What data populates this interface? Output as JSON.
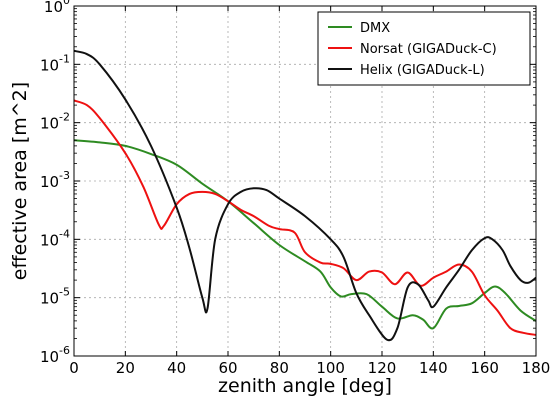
{
  "chart_data": {
    "type": "line",
    "xlabel": "zenith angle [deg]",
    "ylabel": "effective area [m^2]",
    "xlim": [
      0,
      180
    ],
    "ylim": [
      1e-06,
      1
    ],
    "yscale": "log",
    "grid": true,
    "legend_position": "top-right",
    "x_ticks": [
      "0",
      "20",
      "40",
      "60",
      "80",
      "100",
      "120",
      "140",
      "160",
      "180"
    ],
    "y_ticks": [
      {
        "base": "10",
        "exp": "-6"
      },
      {
        "base": "10",
        "exp": "-5"
      },
      {
        "base": "10",
        "exp": "-4"
      },
      {
        "base": "10",
        "exp": "-3"
      },
      {
        "base": "10",
        "exp": "-2"
      },
      {
        "base": "10",
        "exp": "-1"
      },
      {
        "base": "10",
        "exp": "0"
      }
    ],
    "series": [
      {
        "name": "DMX",
        "color": "#2e8b22",
        "points": [
          [
            0,
            0.005
          ],
          [
            10,
            0.0046
          ],
          [
            20,
            0.004
          ],
          [
            30,
            0.0029
          ],
          [
            40,
            0.0019
          ],
          [
            50,
            0.0009
          ],
          [
            60,
            0.00045
          ],
          [
            70,
            0.00019
          ],
          [
            80,
            8e-05
          ],
          [
            90,
            4.2e-05
          ],
          [
            96,
            2.8e-05
          ],
          [
            100,
            1.5e-05
          ],
          [
            104,
            1.05e-05
          ],
          [
            108,
            1.15e-05
          ],
          [
            114,
            1.15e-05
          ],
          [
            120,
            7e-06
          ],
          [
            126,
            4.4e-06
          ],
          [
            132,
            5e-06
          ],
          [
            136,
            4.2e-06
          ],
          [
            140,
            3e-06
          ],
          [
            145,
            6.5e-06
          ],
          [
            150,
            7.2e-06
          ],
          [
            155,
            8e-06
          ],
          [
            160,
            1.2e-05
          ],
          [
            164,
            1.55e-05
          ],
          [
            168,
            1.2e-05
          ],
          [
            174,
            6e-06
          ],
          [
            180,
            4e-06
          ]
        ]
      },
      {
        "name": "Norsat (GIGADuck-C)",
        "color": "#ee1111",
        "points": [
          [
            0,
            0.024
          ],
          [
            5,
            0.02
          ],
          [
            10,
            0.012
          ],
          [
            20,
            0.003
          ],
          [
            27,
            0.0008
          ],
          [
            33,
            0.00018
          ],
          [
            35,
            0.00017
          ],
          [
            40,
            0.0004
          ],
          [
            45,
            0.0006
          ],
          [
            50,
            0.00065
          ],
          [
            55,
            0.0006
          ],
          [
            60,
            0.00045
          ],
          [
            65,
            0.00032
          ],
          [
            70,
            0.00025
          ],
          [
            76,
            0.00017
          ],
          [
            80,
            0.00015
          ],
          [
            86,
            0.00013
          ],
          [
            90,
            6e-05
          ],
          [
            96,
            4e-05
          ],
          [
            100,
            3.8e-05
          ],
          [
            105,
            3.2e-05
          ],
          [
            110,
            2e-05
          ],
          [
            115,
            2.8e-05
          ],
          [
            120,
            2.7e-05
          ],
          [
            125,
            1.7e-05
          ],
          [
            130,
            2.7e-05
          ],
          [
            135,
            1.6e-05
          ],
          [
            140,
            2.2e-05
          ],
          [
            145,
            2.8e-05
          ],
          [
            150,
            3.7e-05
          ],
          [
            155,
            2.8e-05
          ],
          [
            160,
            1.1e-05
          ],
          [
            165,
            6e-06
          ],
          [
            170,
            3e-06
          ],
          [
            175,
            2.5e-06
          ],
          [
            180,
            2.3e-06
          ]
        ]
      },
      {
        "name": "Helix (GIGADuck-L)",
        "color": "#111111",
        "points": [
          [
            0,
            0.17
          ],
          [
            5,
            0.15
          ],
          [
            10,
            0.1
          ],
          [
            20,
            0.025
          ],
          [
            30,
            0.004
          ],
          [
            40,
            0.00035
          ],
          [
            45,
            7e-05
          ],
          [
            50,
            1e-05
          ],
          [
            52,
            6.5e-06
          ],
          [
            55,
            0.0001
          ],
          [
            60,
            0.0004
          ],
          [
            65,
            0.00065
          ],
          [
            70,
            0.00075
          ],
          [
            75,
            0.0007
          ],
          [
            80,
            0.0005
          ],
          [
            90,
            0.00025
          ],
          [
            100,
            0.0001
          ],
          [
            105,
            5e-05
          ],
          [
            110,
            1.2e-05
          ],
          [
            115,
            5e-06
          ],
          [
            122,
            1.9e-06
          ],
          [
            126,
            3e-06
          ],
          [
            130,
            1.5e-05
          ],
          [
            134,
            1.7e-05
          ],
          [
            138,
            9e-06
          ],
          [
            140,
            7e-06
          ],
          [
            145,
            1.5e-05
          ],
          [
            150,
            3e-05
          ],
          [
            155,
            6.5e-05
          ],
          [
            160,
            0.000105
          ],
          [
            163,
            0.0001
          ],
          [
            167,
            6.5e-05
          ],
          [
            170,
            3.5e-05
          ],
          [
            174,
            2e-05
          ],
          [
            177,
            1.8e-05
          ],
          [
            180,
            2.2e-05
          ]
        ]
      }
    ]
  }
}
